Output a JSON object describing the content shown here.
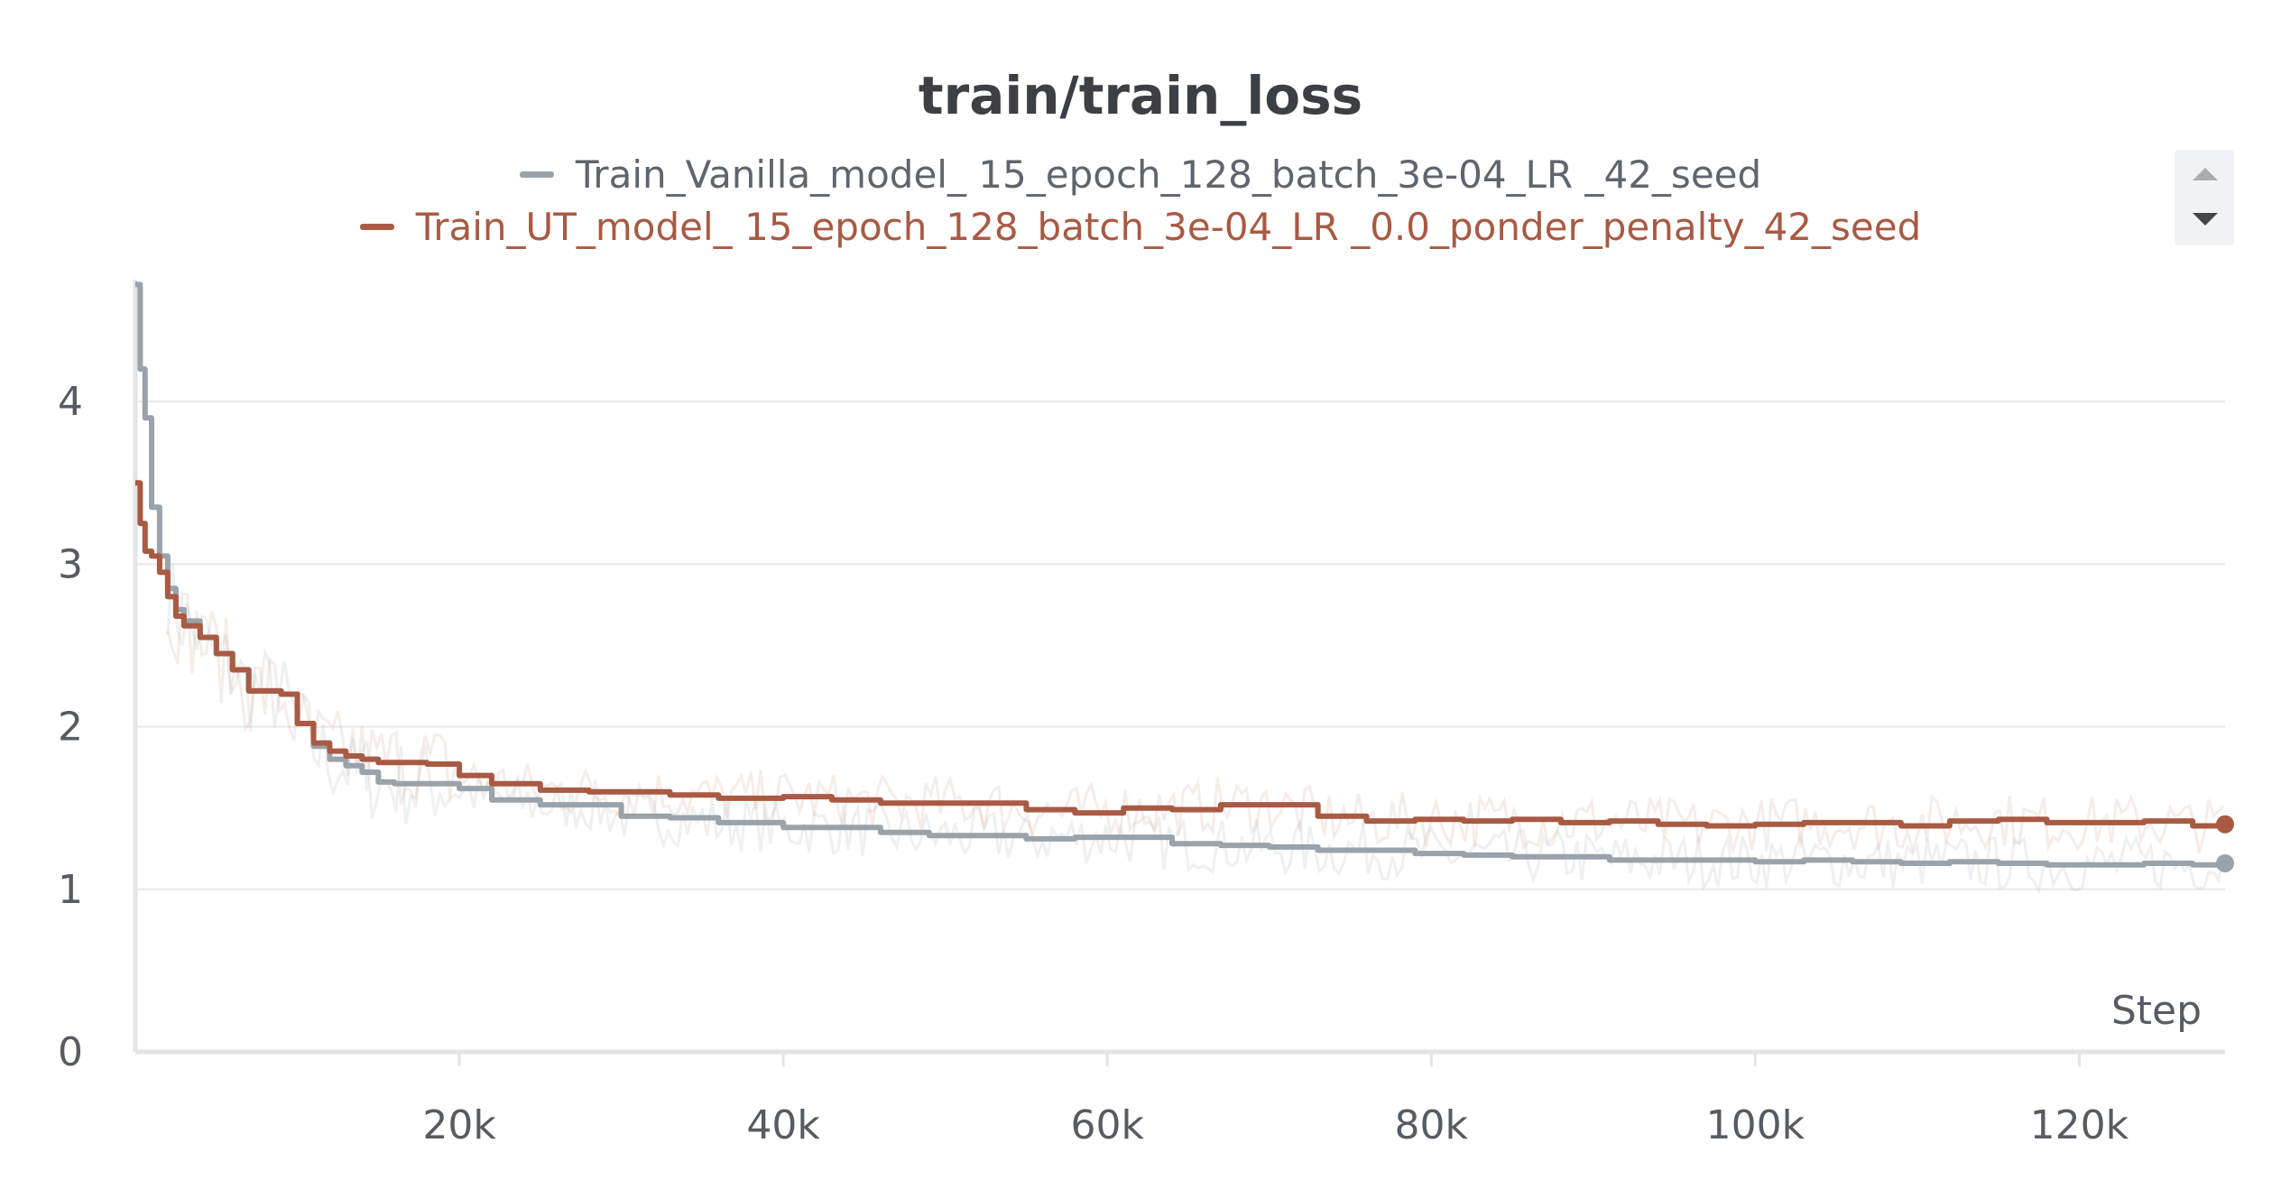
{
  "chart_data": {
    "type": "line",
    "title": "train/train_loss",
    "xlabel": "Step",
    "ylabel": "",
    "xlim": [
      0,
      129000
    ],
    "ylim": [
      0,
      4.75
    ],
    "xticks": [
      20000,
      40000,
      60000,
      80000,
      100000,
      120000
    ],
    "xtick_labels": [
      "20k",
      "40k",
      "60k",
      "80k",
      "100k",
      "120k"
    ],
    "yticks": [
      0,
      1,
      2,
      3,
      4
    ],
    "ytick_labels": [
      "0",
      "1",
      "2",
      "3",
      "4"
    ],
    "grid": true,
    "legend": "top-center",
    "series": [
      {
        "name": "Train_Vanilla_model_ 15_epoch_128_batch_3e-04_LR _42_seed",
        "color": "#9aa2aa",
        "x": [
          0,
          300,
          600,
          1000,
          1500,
          2000,
          2500,
          3000,
          4000,
          5000,
          6000,
          7000,
          8000,
          9000,
          10000,
          11000,
          12000,
          13000,
          14000,
          15000,
          16000,
          18000,
          20000,
          22000,
          25000,
          28000,
          30000,
          33000,
          36000,
          40000,
          43000,
          46000,
          49000,
          52000,
          55000,
          58000,
          61000,
          64000,
          67000,
          70000,
          73000,
          76000,
          79000,
          82000,
          85000,
          88000,
          91000,
          94000,
          97000,
          100000,
          103000,
          106000,
          109000,
          112000,
          115000,
          118000,
          121000,
          124000,
          127000,
          129000
        ],
        "values": [
          4.72,
          4.2,
          3.9,
          3.35,
          3.05,
          2.85,
          2.72,
          2.65,
          2.55,
          2.45,
          2.35,
          2.22,
          2.22,
          2.2,
          2.02,
          1.88,
          1.8,
          1.76,
          1.72,
          1.66,
          1.65,
          1.65,
          1.62,
          1.55,
          1.52,
          1.52,
          1.45,
          1.44,
          1.41,
          1.38,
          1.38,
          1.35,
          1.33,
          1.33,
          1.31,
          1.32,
          1.32,
          1.28,
          1.27,
          1.26,
          1.24,
          1.24,
          1.22,
          1.21,
          1.2,
          1.2,
          1.18,
          1.18,
          1.18,
          1.17,
          1.18,
          1.17,
          1.16,
          1.17,
          1.16,
          1.15,
          1.15,
          1.16,
          1.15,
          1.16
        ]
      },
      {
        "name": "Train_UT_model_ 15_epoch_128_batch_3e-04_LR _0.0_ponder_penalty_42_seed",
        "color": "#a85a43",
        "x": [
          0,
          300,
          600,
          1000,
          1500,
          2000,
          2500,
          3000,
          4000,
          5000,
          6000,
          7000,
          8000,
          9000,
          10000,
          11000,
          12000,
          13000,
          14000,
          15000,
          16000,
          18000,
          20000,
          22000,
          25000,
          28000,
          30000,
          33000,
          36000,
          40000,
          43000,
          46000,
          49000,
          52000,
          55000,
          58000,
          61000,
          64000,
          67000,
          70000,
          73000,
          76000,
          79000,
          82000,
          85000,
          88000,
          91000,
          94000,
          97000,
          100000,
          103000,
          106000,
          109000,
          112000,
          115000,
          118000,
          121000,
          124000,
          127000,
          129000
        ],
        "values": [
          3.5,
          3.25,
          3.08,
          3.05,
          2.95,
          2.8,
          2.68,
          2.62,
          2.55,
          2.45,
          2.35,
          2.22,
          2.22,
          2.2,
          2.02,
          1.9,
          1.85,
          1.82,
          1.8,
          1.78,
          1.78,
          1.77,
          1.7,
          1.65,
          1.61,
          1.6,
          1.6,
          1.58,
          1.56,
          1.57,
          1.55,
          1.53,
          1.53,
          1.53,
          1.49,
          1.47,
          1.5,
          1.49,
          1.52,
          1.52,
          1.45,
          1.42,
          1.43,
          1.42,
          1.43,
          1.41,
          1.42,
          1.4,
          1.39,
          1.4,
          1.41,
          1.41,
          1.39,
          1.42,
          1.43,
          1.41,
          1.41,
          1.42,
          1.39,
          1.4
        ]
      }
    ]
  }
}
